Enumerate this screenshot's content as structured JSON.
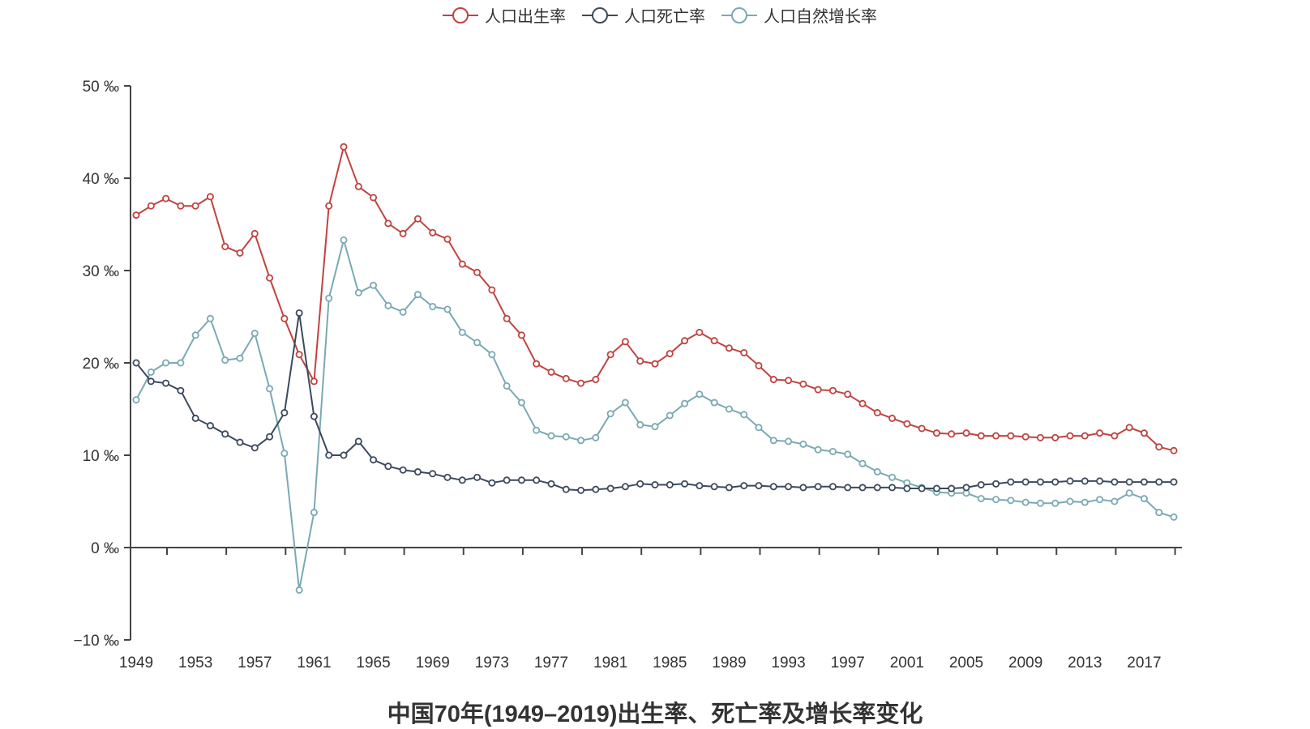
{
  "legend": [
    {
      "label": "人口出生率",
      "color": "#c0433f"
    },
    {
      "label": "人口死亡率",
      "color": "#3b4a5c"
    },
    {
      "label": "人口自然增长率",
      "color": "#7aa9b3"
    }
  ],
  "title": "中国70年(1949–2019)出生率、死亡率及增长率变化",
  "chart_data": {
    "type": "line",
    "title": "中国70年(1949–2019)出生率、死亡率及增长率变化",
    "xlabel": "",
    "ylabel": "",
    "unit": "‰",
    "ylim": [
      -10,
      50
    ],
    "yticks": [
      "−10 ‰",
      "0 ‰",
      "10 ‰",
      "20 ‰",
      "30 ‰",
      "40 ‰",
      "50 ‰"
    ],
    "yticks_values": [
      -10,
      0,
      10,
      20,
      30,
      40,
      50
    ],
    "xticks": [
      "1949",
      "1953",
      "1957",
      "1961",
      "1965",
      "1969",
      "1973",
      "1977",
      "1981",
      "1985",
      "1989",
      "1993",
      "1997",
      "2001",
      "2005",
      "2009",
      "2013",
      "2017"
    ],
    "grid": false,
    "legend_position": "top",
    "x": [
      1949,
      1950,
      1951,
      1952,
      1953,
      1954,
      1955,
      1956,
      1957,
      1958,
      1959,
      1960,
      1961,
      1962,
      1963,
      1964,
      1965,
      1966,
      1967,
      1968,
      1969,
      1970,
      1971,
      1972,
      1973,
      1974,
      1975,
      1976,
      1977,
      1978,
      1979,
      1980,
      1981,
      1982,
      1983,
      1984,
      1985,
      1986,
      1987,
      1988,
      1989,
      1990,
      1991,
      1992,
      1993,
      1994,
      1995,
      1996,
      1997,
      1998,
      1999,
      2000,
      2001,
      2002,
      2003,
      2004,
      2005,
      2006,
      2007,
      2008,
      2009,
      2010,
      2011,
      2012,
      2013,
      2014,
      2015,
      2016,
      2017,
      2018,
      2019
    ],
    "series": [
      {
        "name": "人口出生率",
        "color": "#c0433f",
        "values": [
          36.0,
          37.0,
          37.8,
          37.0,
          37.0,
          38.0,
          32.6,
          31.9,
          34.0,
          29.2,
          24.8,
          20.9,
          18.0,
          37.0,
          43.4,
          39.1,
          37.9,
          35.1,
          34.0,
          35.6,
          34.1,
          33.4,
          30.7,
          29.8,
          27.9,
          24.8,
          23.0,
          19.9,
          19.0,
          18.3,
          17.8,
          18.2,
          20.9,
          22.3,
          20.2,
          19.9,
          21.0,
          22.4,
          23.3,
          22.4,
          21.6,
          21.1,
          19.7,
          18.2,
          18.1,
          17.7,
          17.1,
          17.0,
          16.6,
          15.6,
          14.6,
          14.0,
          13.4,
          12.9,
          12.4,
          12.3,
          12.4,
          12.1,
          12.1,
          12.1,
          12.0,
          11.9,
          11.9,
          12.1,
          12.1,
          12.4,
          12.1,
          13.0,
          12.4,
          10.9,
          10.5
        ]
      },
      {
        "name": "人口死亡率",
        "color": "#3b4a5c",
        "values": [
          20.0,
          18.0,
          17.8,
          17.0,
          14.0,
          13.2,
          12.3,
          11.4,
          10.8,
          12.0,
          14.6,
          25.4,
          14.2,
          10.0,
          10.0,
          11.5,
          9.5,
          8.8,
          8.4,
          8.2,
          8.0,
          7.6,
          7.3,
          7.6,
          7.0,
          7.3,
          7.3,
          7.3,
          6.9,
          6.3,
          6.2,
          6.3,
          6.4,
          6.6,
          6.9,
          6.8,
          6.8,
          6.9,
          6.7,
          6.6,
          6.5,
          6.7,
          6.7,
          6.6,
          6.6,
          6.5,
          6.6,
          6.6,
          6.5,
          6.5,
          6.5,
          6.5,
          6.4,
          6.4,
          6.4,
          6.4,
          6.5,
          6.8,
          6.9,
          7.1,
          7.1,
          7.1,
          7.1,
          7.2,
          7.2,
          7.2,
          7.1,
          7.1,
          7.1,
          7.1,
          7.1
        ]
      },
      {
        "name": "人口自然增长率",
        "color": "#7aa9b3",
        "values": [
          16.0,
          19.0,
          20.0,
          20.0,
          23.0,
          24.8,
          20.3,
          20.5,
          23.2,
          17.2,
          10.2,
          -4.6,
          3.8,
          27.0,
          33.3,
          27.6,
          28.4,
          26.2,
          25.5,
          27.4,
          26.1,
          25.8,
          23.3,
          22.2,
          20.9,
          17.5,
          15.7,
          12.7,
          12.1,
          12.0,
          11.6,
          11.9,
          14.5,
          15.7,
          13.3,
          13.1,
          14.3,
          15.6,
          16.6,
          15.7,
          15.0,
          14.4,
          13.0,
          11.6,
          11.5,
          11.2,
          10.6,
          10.4,
          10.1,
          9.1,
          8.2,
          7.6,
          7.0,
          6.5,
          6.0,
          5.9,
          5.9,
          5.3,
          5.2,
          5.1,
          4.9,
          4.8,
          4.8,
          5.0,
          4.9,
          5.2,
          5.0,
          5.9,
          5.3,
          3.8,
          3.3
        ]
      }
    ]
  }
}
